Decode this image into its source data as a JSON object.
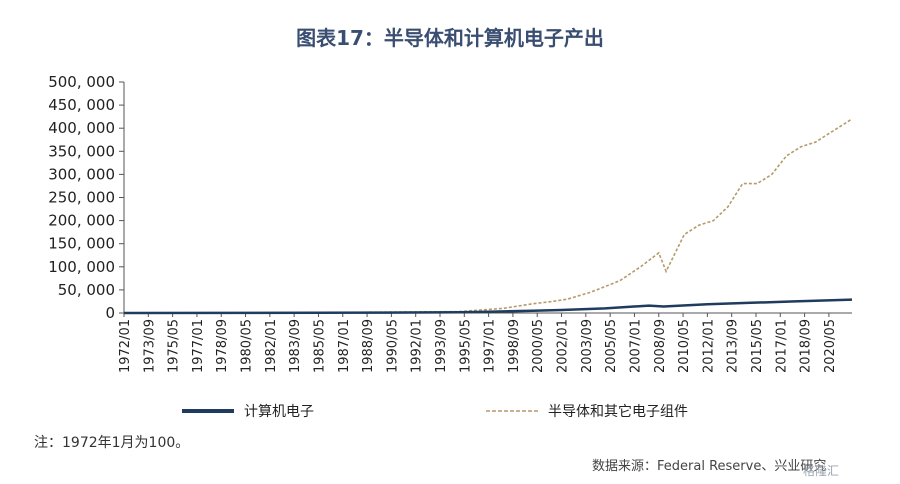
{
  "title": "图表17：半导体和计算机电子产出",
  "note": "注：1972年1月为100。",
  "source": "数据来源：Federal Reserve、兴业研究",
  "watermark": "格隆汇",
  "colors": {
    "series1": "#1f3b5e",
    "series2": "#b59a6a",
    "axis": "#555555"
  },
  "chart_data": {
    "type": "line",
    "title": "图表17：半导体和计算机电子产出",
    "ylim": [
      0,
      500000
    ],
    "yticks": [
      0,
      50000,
      100000,
      150000,
      200000,
      250000,
      300000,
      350000,
      400000,
      450000,
      500000
    ],
    "ytick_labels": [
      "0",
      "50, 000",
      "100, 000",
      "150, 000",
      "200, 000",
      "250, 000",
      "300, 000",
      "350, 000",
      "400, 000",
      "450, 000",
      "500, 000"
    ],
    "x_range": [
      "1972/01",
      "2021/12"
    ],
    "xtick_labels": [
      "1972/01",
      "1973/09",
      "1975/05",
      "1977/01",
      "1978/09",
      "1980/05",
      "1982/01",
      "1983/09",
      "1985/05",
      "1987/01",
      "1988/09",
      "1990/05",
      "1992/01",
      "1993/09",
      "1995/05",
      "1997/01",
      "1998/09",
      "2000/05",
      "2002/01",
      "2003/09",
      "2005/05",
      "2007/01",
      "2008/09",
      "2010/05",
      "2012/01",
      "2013/09",
      "2015/05",
      "2017/01",
      "2018/09",
      "2020/05"
    ],
    "grid": false,
    "legend_position": "bottom",
    "series": [
      {
        "name": "计算机电子",
        "style": "solid",
        "x": [
          "1972/01",
          "1980/01",
          "1990/01",
          "1995/01",
          "1997/01",
          "2000/01",
          "2002/01",
          "2005/01",
          "2008/01",
          "2009/01",
          "2012/01",
          "2015/01",
          "2018/01",
          "2021/12"
        ],
        "y": [
          100,
          300,
          800,
          1500,
          2500,
          5000,
          6500,
          10000,
          16000,
          14000,
          19000,
          22000,
          25000,
          29000
        ]
      },
      {
        "name": "半导体和其它电子组件",
        "style": "dashed",
        "x": [
          "1972/01",
          "1985/01",
          "1995/01",
          "1998/01",
          "2000/01",
          "2001/06",
          "2002/06",
          "2004/01",
          "2006/01",
          "2007/06",
          "2008/09",
          "2009/03",
          "2010/06",
          "2011/06",
          "2012/06",
          "2013/06",
          "2014/06",
          "2015/06",
          "2016/06",
          "2017/06",
          "2018/06",
          "2019/06",
          "2020/06",
          "2021/12"
        ],
        "y": [
          100,
          800,
          3000,
          10000,
          20000,
          25000,
          30000,
          45000,
          70000,
          100000,
          130000,
          90000,
          170000,
          190000,
          200000,
          230000,
          280000,
          280000,
          300000,
          340000,
          360000,
          370000,
          390000,
          420000
        ]
      }
    ]
  }
}
